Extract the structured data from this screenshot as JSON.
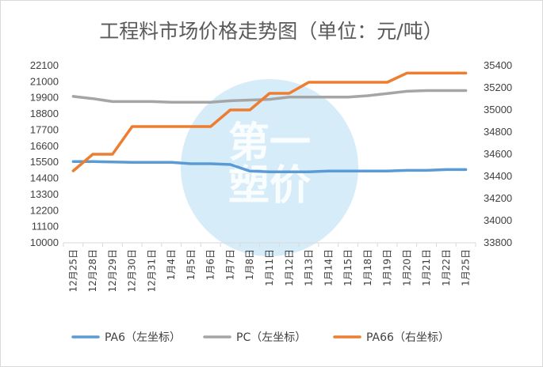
{
  "chart_data": {
    "type": "line",
    "title": "工程料市场价格走势图（单位：元/吨）",
    "categories": [
      "12月25日",
      "12月28日",
      "12月29日",
      "12月30日",
      "12月31日",
      "1月4日",
      "1月5日",
      "1月6日",
      "1月7日",
      "1月8日",
      "1月11日",
      "1月12日",
      "1月13日",
      "1月14日",
      "1月15日",
      "1月18日",
      "1月19日",
      "1月20日",
      "1月21日",
      "1月22日",
      "1月25日"
    ],
    "left_axis": {
      "min": 10000,
      "max": 22100,
      "ticks": [
        10000,
        11100,
        12200,
        13300,
        14400,
        15500,
        16600,
        17700,
        18800,
        19900,
        21000,
        22100
      ]
    },
    "right_axis": {
      "min": 33800,
      "max": 35400,
      "ticks": [
        33800,
        34000,
        34200,
        34400,
        34600,
        34800,
        35000,
        35200,
        35400
      ]
    },
    "series": [
      {
        "name": "PA6（左坐标）",
        "axis": "left",
        "color": "#5b9bd5",
        "values": [
          15550,
          15550,
          15520,
          15500,
          15500,
          15500,
          15400,
          15400,
          15350,
          14900,
          14850,
          14850,
          14850,
          14900,
          14900,
          14900,
          14900,
          14950,
          14950,
          15000,
          15000
        ]
      },
      {
        "name": "PC（左坐标）",
        "axis": "left",
        "color": "#a5a5a5",
        "values": [
          20000,
          19850,
          19650,
          19650,
          19650,
          19600,
          19600,
          19600,
          19700,
          19750,
          19800,
          19950,
          19950,
          19950,
          19950,
          20050,
          20200,
          20350,
          20400,
          20400,
          20400
        ]
      },
      {
        "name": "PA66（右坐标）",
        "axis": "right",
        "color": "#ed7d31",
        "values": [
          34450,
          34600,
          34600,
          34850,
          34850,
          34850,
          34850,
          34850,
          35000,
          35000,
          35150,
          35150,
          35250,
          35250,
          35250,
          35250,
          35250,
          35333,
          35333,
          35333,
          35333
        ]
      }
    ],
    "legend_position": "bottom",
    "grid": false
  },
  "watermark": {
    "text_top": "第一",
    "text_bottom": "塑价"
  }
}
